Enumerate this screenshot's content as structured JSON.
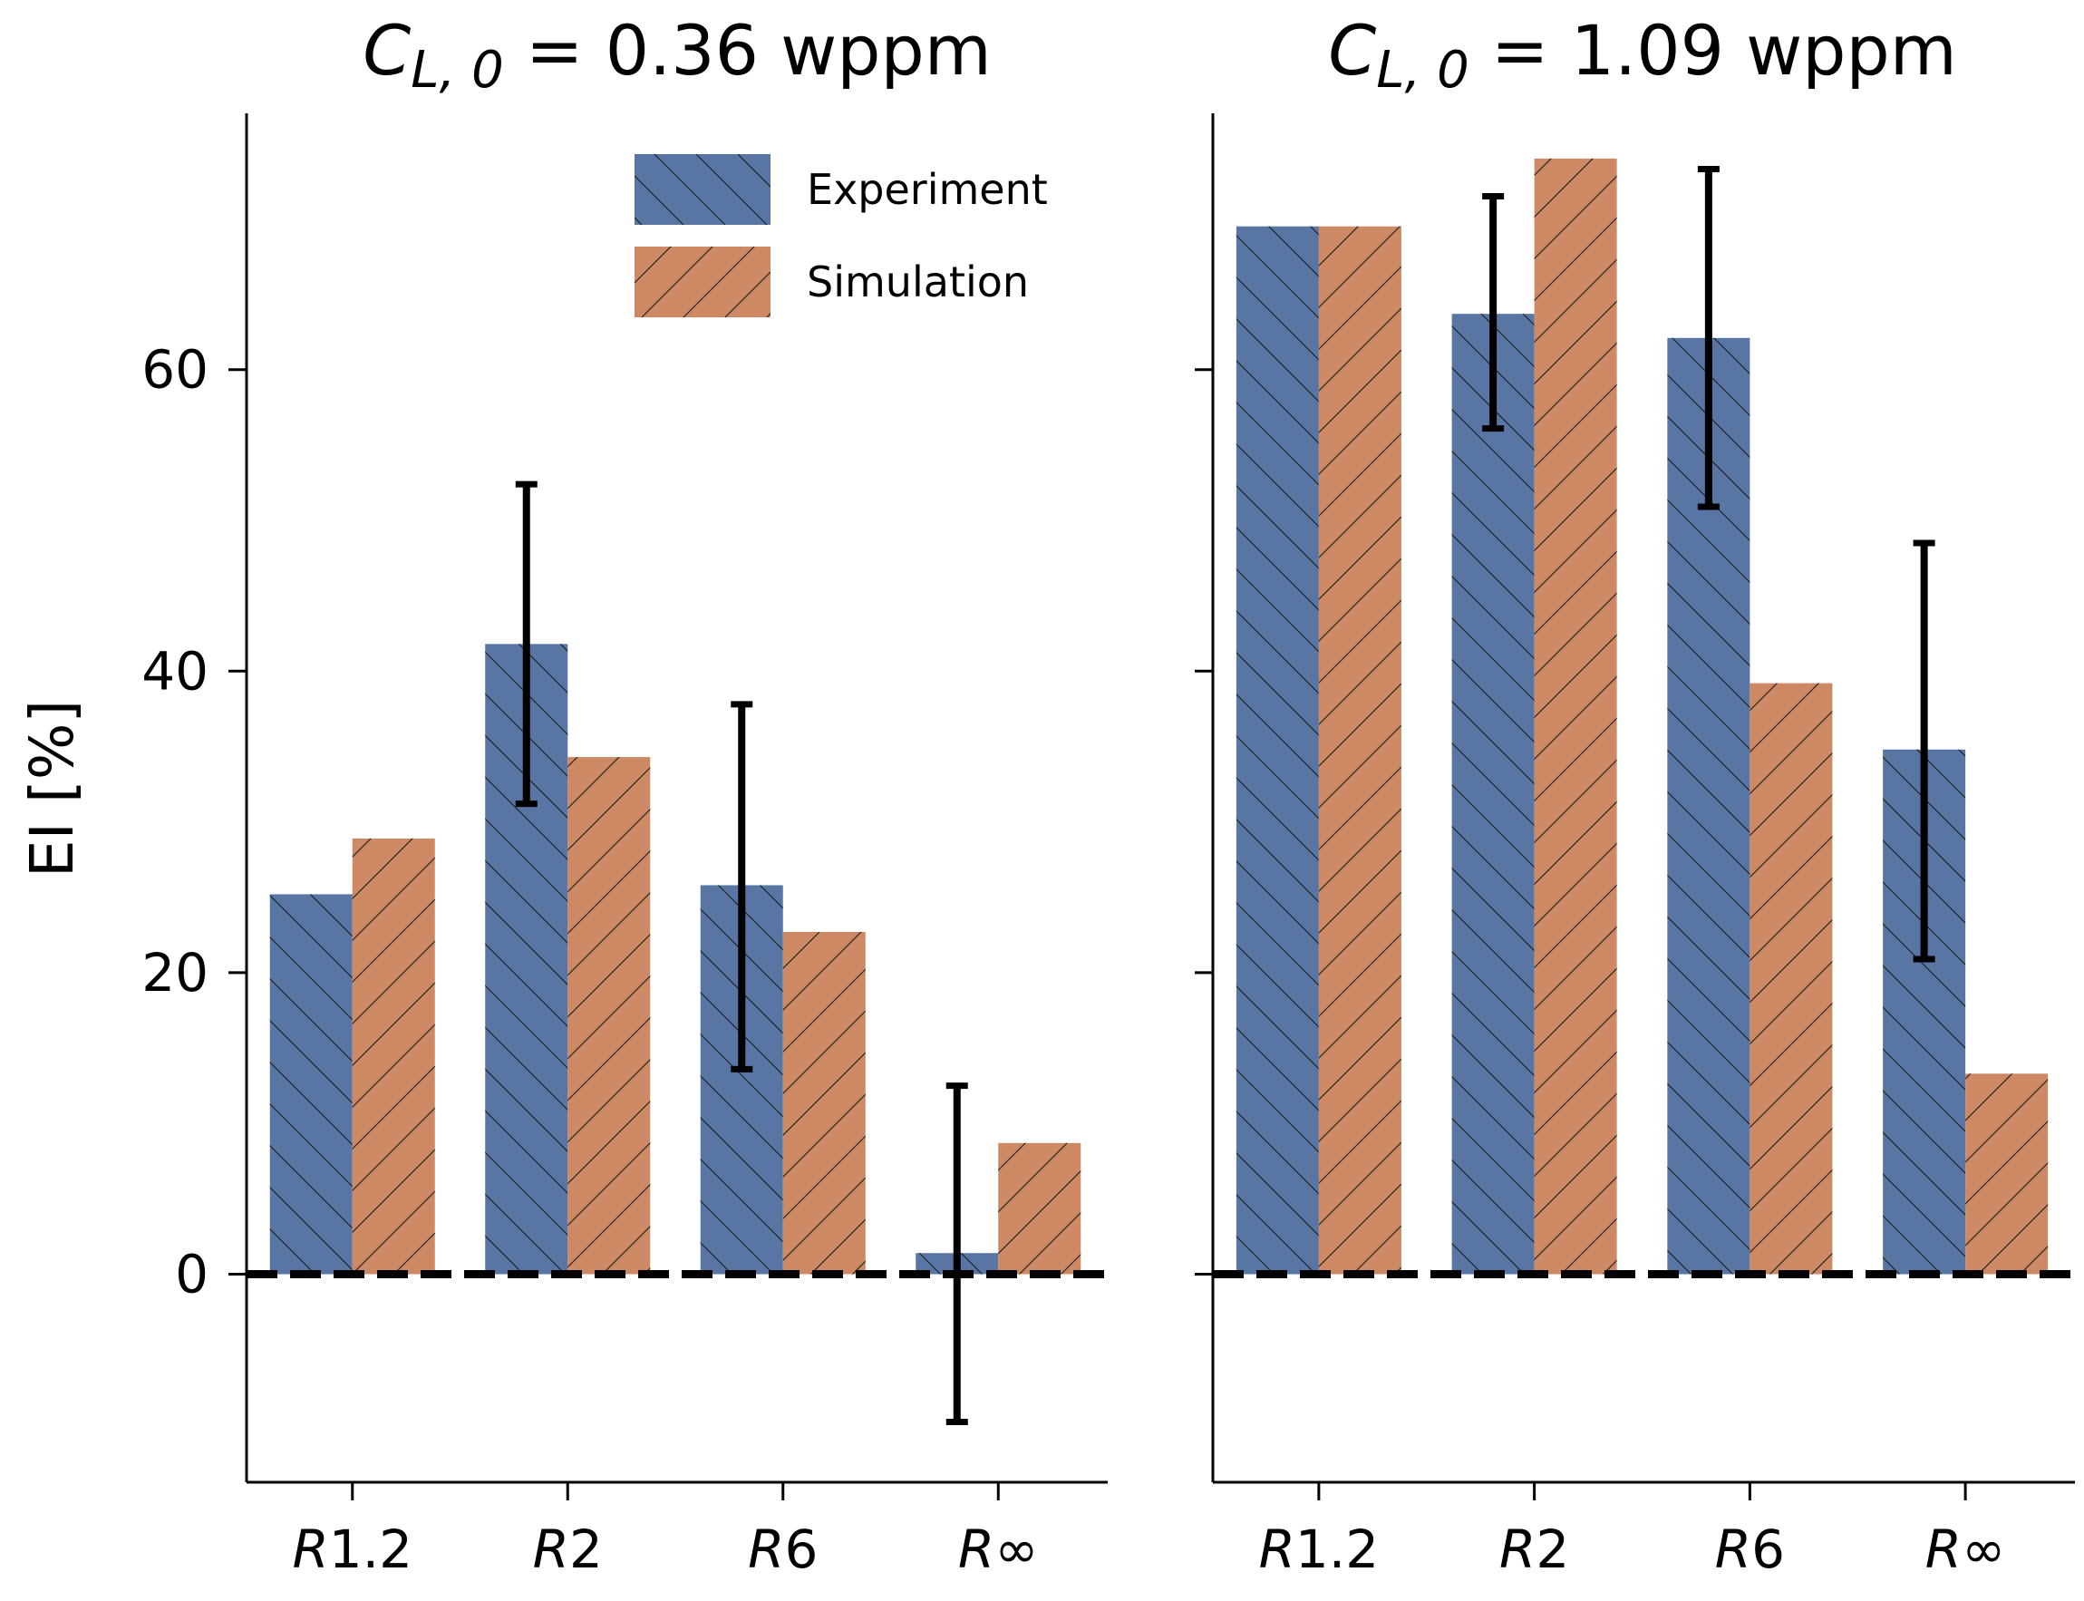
{
  "chart_data": [
    {
      "type": "bar",
      "title_var": "C",
      "title_sub": "L, 0",
      "title_rest": " = 0.36 wppm",
      "ylabel": "EI [%]",
      "categories": [
        {
          "prefix": "R",
          "suffix": "1.2"
        },
        {
          "prefix": "R",
          "suffix": "2"
        },
        {
          "prefix": "R",
          "suffix": "6"
        },
        {
          "prefix": "R",
          "suffix": "∞"
        }
      ],
      "series": [
        {
          "name": "Experiment",
          "color": "#5875a4",
          "hatch": "\\",
          "values": [
            25.2,
            41.8,
            25.8,
            1.4
          ],
          "errors": [
            null,
            [
              31.2,
              52.4
            ],
            [
              13.6,
              37.8
            ],
            [
              -9.8,
              12.5
            ]
          ]
        },
        {
          "name": "Simulation",
          "color": "#cc8963",
          "hatch": "/",
          "values": [
            28.9,
            34.3,
            22.7,
            8.7
          ],
          "errors": [
            null,
            null,
            null,
            null
          ]
        }
      ],
      "yticks": [
        "0",
        "20",
        "40",
        "60"
      ],
      "ytick_values": [
        0,
        20,
        40,
        60
      ],
      "show_ytick_labels": true,
      "ylim": [
        -13.8,
        77
      ],
      "baseline": 0,
      "legend": {
        "position": "top-right"
      }
    },
    {
      "type": "bar",
      "title_var": "C",
      "title_sub": "L, 0",
      "title_rest": " = 1.09 wppm",
      "ylabel": "",
      "categories": [
        {
          "prefix": "R",
          "suffix": "1.2"
        },
        {
          "prefix": "R",
          "suffix": "2"
        },
        {
          "prefix": "R",
          "suffix": "6"
        },
        {
          "prefix": "R",
          "suffix": "∞"
        }
      ],
      "series": [
        {
          "name": "Experiment",
          "color": "#5875a4",
          "hatch": "\\",
          "values": [
            69.5,
            63.7,
            62.1,
            34.8
          ],
          "errors": [
            null,
            [
              56.1,
              71.5
            ],
            [
              50.9,
              73.3
            ],
            [
              20.9,
              48.5
            ]
          ]
        },
        {
          "name": "Simulation",
          "color": "#cc8963",
          "hatch": "/",
          "values": [
            69.5,
            74.0,
            39.2,
            13.3
          ],
          "errors": [
            null,
            null,
            null,
            null
          ]
        }
      ],
      "yticks": [
        "0",
        "20",
        "40",
        "60"
      ],
      "ytick_values": [
        0,
        20,
        40,
        60
      ],
      "show_ytick_labels": false,
      "ylim": [
        -13.8,
        77
      ],
      "baseline": 0,
      "legend": null
    }
  ]
}
